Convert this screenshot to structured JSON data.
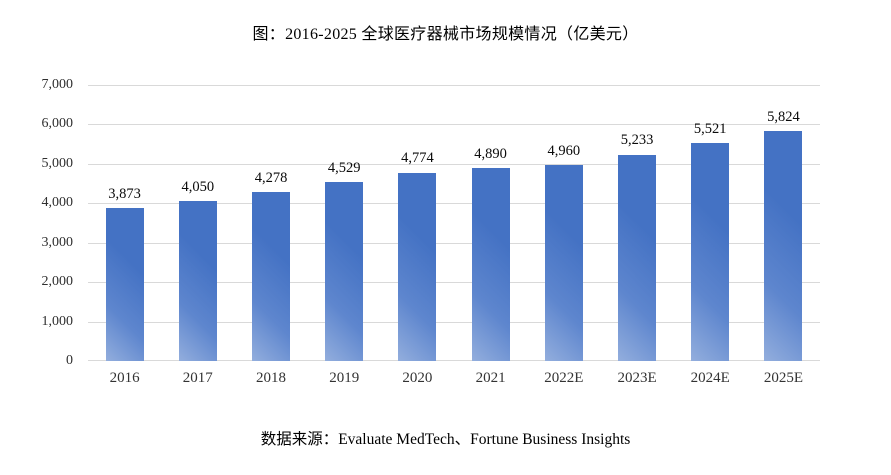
{
  "title": "图：2016-2025 全球医疗器械市场规模情况（亿美元）",
  "source_note": "数据来源：Evaluate MedTech、Fortune Business Insights",
  "colors": {
    "bar_main": "#4472C4",
    "bar_light": "#93AEDD",
    "gridline": "#D9D9D9",
    "text": "#000000",
    "axis_text": "#333333"
  },
  "chart_data": {
    "type": "bar",
    "title": "图：2016-2025 全球医疗器械市场规模情况（亿美元）",
    "categories": [
      "2016",
      "2017",
      "2018",
      "2019",
      "2020",
      "2021",
      "2022E",
      "2023E",
      "2024E",
      "2025E"
    ],
    "values": [
      3873,
      4050,
      4278,
      4529,
      4774,
      4890,
      4960,
      5233,
      5521,
      5824
    ],
    "value_labels": [
      "3,873",
      "4,050",
      "4,278",
      "4,529",
      "4,774",
      "4,890",
      "4,960",
      "5,233",
      "5,521",
      "5,824"
    ],
    "xlabel": "",
    "ylabel": "",
    "ylim": [
      0,
      7000
    ],
    "ytick_interval": 1000,
    "ytick_labels": [
      "7,000",
      "6,000",
      "5,000",
      "4,000",
      "3,000",
      "2,000",
      "1,000",
      "0"
    ],
    "grid": true,
    "legend_position": "none",
    "source": "数据来源：Evaluate MedTech、Fortune Business Insights"
  }
}
